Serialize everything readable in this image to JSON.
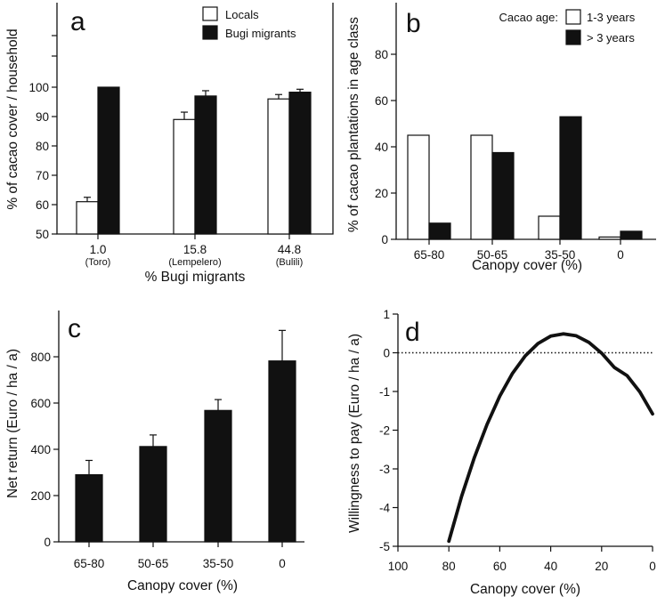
{
  "chart_data": [
    {
      "id": "a",
      "type": "bar",
      "panel_letter": "a",
      "categories": [
        "1.0",
        "15.8",
        "44.8"
      ],
      "category_sublabels": [
        "(Toro)",
        "(Lempelero)",
        "(Bulili)"
      ],
      "xlabel": "% Bugi migrants",
      "ylabel": "% of cacao cover / household",
      "ylim": [
        50,
        100
      ],
      "yticks": [
        50,
        60,
        70,
        80,
        90,
        100
      ],
      "series": [
        {
          "name": "Locals",
          "fill": "#ffffff",
          "values": [
            61,
            89,
            96
          ],
          "errors": [
            1.5,
            2.5,
            1.5
          ]
        },
        {
          "name": "Bugi migrants",
          "fill": "#111111",
          "values": [
            100,
            97,
            98.3
          ],
          "errors": [
            0,
            1.8,
            1.0
          ]
        }
      ],
      "legend_position": "top-right",
      "grid": false
    },
    {
      "id": "b",
      "type": "bar",
      "panel_letter": "b",
      "categories": [
        "65-80",
        "50-65",
        "35-50",
        "0"
      ],
      "xlabel": "Canopy cover (%)",
      "ylabel": "% of cacao plantations in age class",
      "ylim": [
        0,
        100
      ],
      "yticks": [
        0,
        20,
        40,
        60,
        80
      ],
      "legend_title": "Cacao age:",
      "series": [
        {
          "name": "1-3 years",
          "fill": "#ffffff",
          "values": [
            45,
            45,
            10,
            1
          ]
        },
        {
          "name": "> 3 years",
          "fill": "#111111",
          "values": [
            7,
            37.5,
            53,
            3.5
          ]
        }
      ],
      "legend_position": "top-right",
      "grid": false
    },
    {
      "id": "c",
      "type": "bar",
      "panel_letter": "c",
      "categories": [
        "65-80",
        "50-65",
        "35-50",
        "0"
      ],
      "xlabel": "Canopy cover (%)",
      "ylabel": "Net return (Euro / ha / a)",
      "ylim": [
        0,
        1000
      ],
      "yticks": [
        0,
        200,
        400,
        600,
        800
      ],
      "series": [
        {
          "name": "",
          "fill": "#111111",
          "values": [
            290,
            412,
            568,
            782
          ],
          "errors": [
            62,
            50,
            47,
            132
          ]
        }
      ],
      "grid": false
    },
    {
      "id": "d",
      "type": "line",
      "panel_letter": "d",
      "xlabel": "Canopy cover (%)",
      "ylabel": "Willingness to pay (Euro / ha / a)",
      "xlim": [
        100,
        0
      ],
      "ylim": [
        -5,
        1
      ],
      "xticks": [
        100,
        80,
        60,
        40,
        20,
        0
      ],
      "yticks": [
        -5,
        -4,
        -3,
        -2,
        -1,
        0,
        1
      ],
      "reference_line": {
        "y": 0,
        "style": "dotted"
      },
      "series": [
        {
          "name": "",
          "x": [
            80,
            75,
            70,
            65,
            60,
            55,
            50,
            45,
            40,
            35,
            30,
            25,
            20,
            15,
            10,
            5,
            0
          ],
          "y": [
            -4.87,
            -3.71,
            -2.71,
            -1.85,
            -1.12,
            -0.53,
            -0.08,
            0.24,
            0.43,
            0.49,
            0.44,
            0.27,
            -0.01,
            -0.38,
            -0.59,
            -1.01,
            -1.58
          ]
        }
      ],
      "grid": false
    }
  ]
}
